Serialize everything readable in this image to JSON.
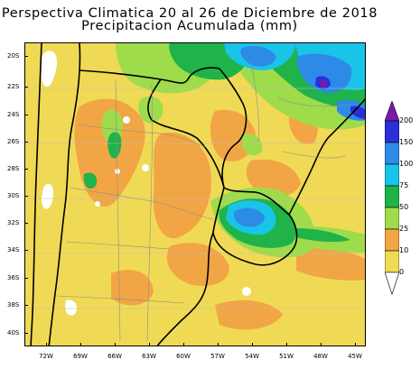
{
  "title": {
    "line1": "Perspectiva Climatica 20 al 26 de Diciembre de 2018",
    "line2": "Precipitacion Acumulada (mm)"
  },
  "map": {
    "lat_labels": [
      "20S",
      "22S",
      "24S",
      "26S",
      "28S",
      "30S",
      "32S",
      "34S",
      "36S",
      "38S",
      "40S"
    ],
    "lon_labels": [
      "72W",
      "69W",
      "66W",
      "63W",
      "60W",
      "57W",
      "54W",
      "51W",
      "48W",
      "45W"
    ]
  },
  "legend": {
    "levels": [
      "200",
      "150",
      "100",
      "75",
      "50",
      "25",
      "10",
      "0"
    ],
    "colors": {
      "over_200": "#7a1aa8",
      "150_200": "#2a2fd8",
      "100_150": "#2d8ae6",
      "75_100": "#19c4e8",
      "50_75": "#1fb34a",
      "25_50": "#9edc4c",
      "10_25": "#f2a545",
      "0_10": "#f0da55",
      "zero": "#ffffff"
    }
  }
}
